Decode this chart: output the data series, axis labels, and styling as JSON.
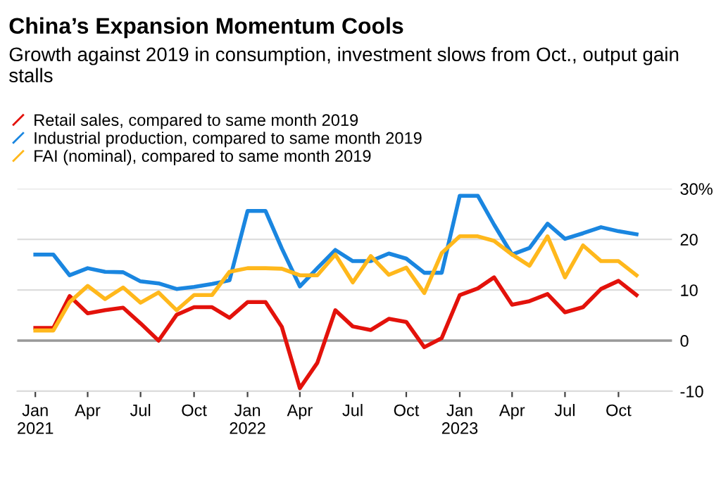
{
  "chart_data": {
    "type": "line",
    "title": "China’s Expansion Momentum Cools",
    "subtitle": "Growth against 2019 in consumption, investment slows from Oct., output gain stalls",
    "x": [
      "2021-01",
      "2021-02",
      "2021-03",
      "2021-04",
      "2021-05",
      "2021-06",
      "2021-07",
      "2021-08",
      "2021-09",
      "2021-10",
      "2021-11",
      "2021-12",
      "2022-01",
      "2022-02",
      "2022-03",
      "2022-04",
      "2022-05",
      "2022-06",
      "2022-07",
      "2022-08",
      "2022-09",
      "2022-10",
      "2022-11",
      "2022-12",
      "2023-01",
      "2023-02",
      "2023-03",
      "2023-04",
      "2023-05",
      "2023-06",
      "2023-07",
      "2023-08",
      "2023-09",
      "2023-10",
      "2023-11"
    ],
    "series": [
      {
        "name": "Retail sales, compared to same month 2019",
        "color": "#e3120b",
        "values": [
          2.5,
          2.5,
          8.8,
          5.4,
          6.0,
          6.5,
          3.4,
          0,
          5.1,
          6.6,
          6.6,
          4.5,
          7.6,
          7.6,
          2.7,
          -9.4,
          -4.4,
          6.0,
          2.8,
          2.1,
          4.3,
          3.7,
          -1.3,
          0.5,
          9.0,
          10.3,
          12.5,
          7.1,
          7.8,
          9.2,
          5.6,
          6.6,
          10.2,
          11.8,
          9.0
        ]
      },
      {
        "name": "Industrial production, compared to same month 2019",
        "color": "#1a86e0",
        "values": [
          17.0,
          17.0,
          12.9,
          14.3,
          13.6,
          13.5,
          11.7,
          11.3,
          10.2,
          10.6,
          11.2,
          11.9,
          25.6,
          25.6,
          18.2,
          10.7,
          14.3,
          17.9,
          15.7,
          15.7,
          17.2,
          16.2,
          13.4,
          13.4,
          28.6,
          28.6,
          22.9,
          17.0,
          18.3,
          23.1,
          20.1,
          21.2,
          22.4,
          21.6,
          21.0
        ]
      },
      {
        "name": "FAI (nominal), compared to same month 2019",
        "color": "#ffb81c",
        "values": [
          2.0,
          2.0,
          7.6,
          10.8,
          8.2,
          10.5,
          7.5,
          9.5,
          6.0,
          9.0,
          9.0,
          13.6,
          14.3,
          14.3,
          14.2,
          12.9,
          12.9,
          17.0,
          11.5,
          16.7,
          13.0,
          14.4,
          9.4,
          17.3,
          20.6,
          20.6,
          19.7,
          17.0,
          14.8,
          20.6,
          12.5,
          18.8,
          15.7,
          15.7,
          12.9
        ]
      }
    ],
    "xlim": [
      "2020-12",
      "2024-01"
    ],
    "xticks": [
      {
        "value": "2021-01",
        "label": "Jan\n2021"
      },
      {
        "value": "2021-04",
        "label": "Apr"
      },
      {
        "value": "2021-07",
        "label": "Jul"
      },
      {
        "value": "2021-10",
        "label": "Oct"
      },
      {
        "value": "2022-01",
        "label": "Jan\n2022"
      },
      {
        "value": "2022-04",
        "label": "Apr"
      },
      {
        "value": "2022-07",
        "label": "Jul"
      },
      {
        "value": "2022-10",
        "label": "Oct"
      },
      {
        "value": "2023-01",
        "label": "Jan\n2023"
      },
      {
        "value": "2023-04",
        "label": "Apr"
      },
      {
        "value": "2023-07",
        "label": "Jul"
      },
      {
        "value": "2023-10",
        "label": "Oct"
      }
    ],
    "ylim": [
      -10,
      30
    ],
    "yticks": [
      -10,
      0,
      10,
      20,
      {
        "value": 30,
        "label": "30%"
      }
    ],
    "ref_lines": [
      {
        "axis": "y",
        "value": 0,
        "label": null,
        "color": "#999999"
      }
    ],
    "grid": "y",
    "legend": "top left",
    "marker": "none",
    "line_style": "solid"
  }
}
